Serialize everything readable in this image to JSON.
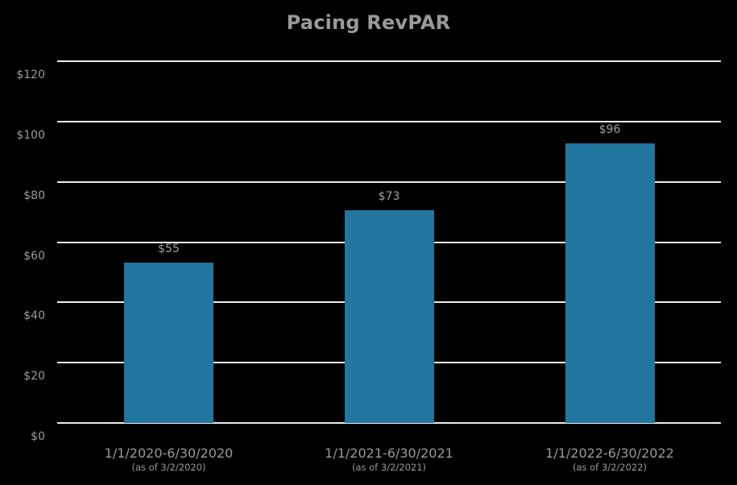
{
  "chart_data": {
    "type": "bar",
    "title": "Pacing RevPAR",
    "xlabel": "",
    "ylabel": "",
    "categories": [
      "1/1/2020-6/30/2020",
      "1/1/2021-6/30/2021",
      "1/1/2022-6/30/2022"
    ],
    "category_notes": [
      "(as of 3/2/2020)",
      "(as of 3/2/2021)",
      "(as of 3/2/2022)"
    ],
    "values": [
      55,
      73,
      96
    ],
    "data_labels": [
      "$55",
      "$73",
      "$96"
    ],
    "ylim": [
      0,
      120
    ],
    "yticks": [
      0,
      20,
      40,
      60,
      80,
      100,
      120
    ],
    "ytick_labels": [
      "$0",
      "$20",
      "$40",
      "$60",
      "$80",
      "$100",
      "$120"
    ],
    "grid": true,
    "legend": null,
    "colors": {
      "bar": "#21769f",
      "background": "#000000",
      "grid": "#ececec",
      "text": "#9a9a9a"
    }
  }
}
